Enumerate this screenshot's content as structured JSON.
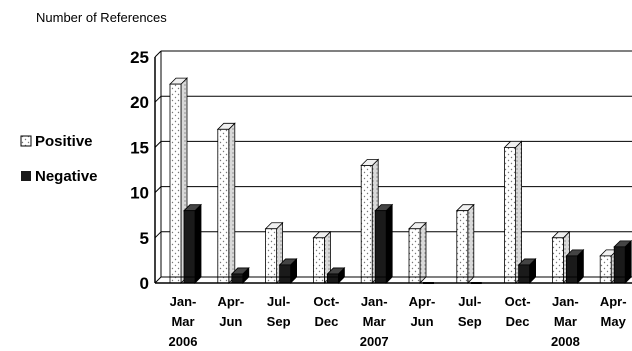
{
  "chart_data": {
    "type": "bar",
    "title": "",
    "ylabel": "Number of References",
    "xlabel": "",
    "ylim": [
      0,
      25
    ],
    "yticks": [
      0,
      5,
      10,
      15,
      20,
      25
    ],
    "grid": true,
    "legend_position": "left",
    "categories": [
      [
        "Jan-",
        "Mar",
        "2006"
      ],
      [
        "Apr-",
        "Jun"
      ],
      [
        "Jul-",
        "Sep"
      ],
      [
        "Oct-",
        "Dec"
      ],
      [
        "Jan-",
        "Mar",
        "2007"
      ],
      [
        "Apr-",
        "Jun"
      ],
      [
        "Jul-",
        "Sep"
      ],
      [
        "Oct-",
        "Dec"
      ],
      [
        "Jan-",
        "Mar",
        "2008"
      ],
      [
        "Apr-",
        "May"
      ]
    ],
    "series": [
      {
        "name": "Positive",
        "values": [
          22,
          17,
          6,
          5,
          13,
          6,
          8,
          15,
          5,
          3
        ]
      },
      {
        "name": "Negative",
        "values": [
          8,
          1,
          2,
          1,
          8,
          0,
          0,
          2,
          3,
          4
        ]
      }
    ],
    "colors": {
      "positive": "#ffffff",
      "negative": "#1a1a1a",
      "axis": "#000000"
    }
  }
}
